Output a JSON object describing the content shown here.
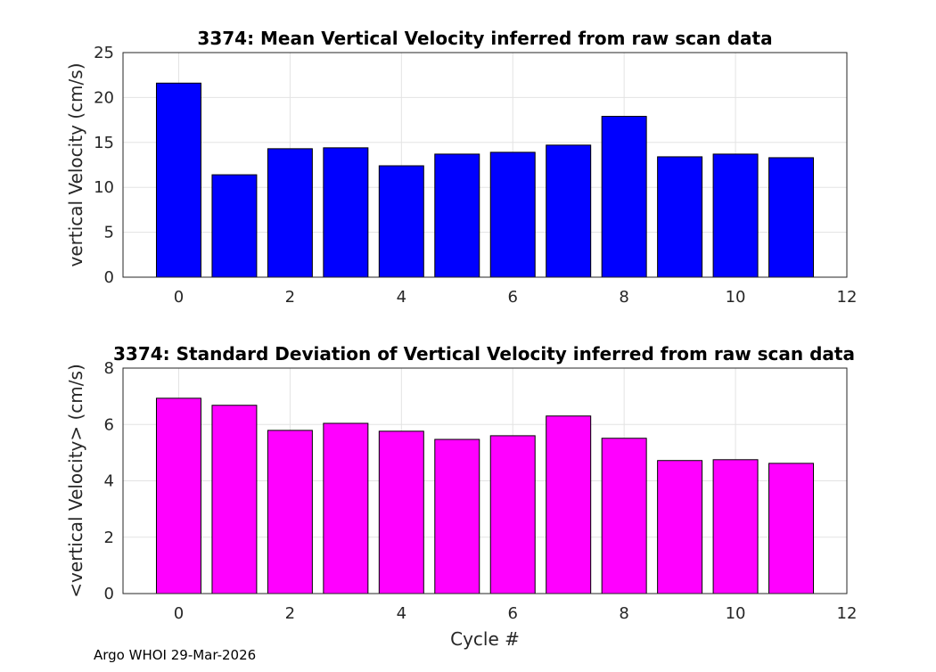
{
  "chart_data": [
    {
      "type": "bar",
      "title": "3374: Mean Vertical Velocity inferred from raw scan data",
      "xlabel": "",
      "ylabel": "vertical Velocity (cm/s)",
      "x": [
        0,
        1,
        2,
        3,
        4,
        5,
        6,
        7,
        8,
        9,
        10,
        11
      ],
      "values": [
        21.6,
        11.4,
        14.3,
        14.4,
        12.4,
        13.7,
        13.9,
        14.7,
        17.9,
        13.4,
        13.7,
        13.3
      ],
      "xlim": [
        -1,
        12
      ],
      "ylim": [
        0,
        25
      ],
      "xticks": [
        0,
        2,
        4,
        6,
        8,
        10,
        12
      ],
      "yticks": [
        0,
        5,
        10,
        15,
        20,
        25
      ],
      "color": "#0000ff",
      "grid": true
    },
    {
      "type": "bar",
      "title": "3374: Standard Deviation of Vertical Velocity inferred from raw scan data",
      "xlabel": "Cycle #",
      "ylabel": "<vertical Velocity> (cm/s)",
      "x": [
        0,
        1,
        2,
        3,
        4,
        5,
        6,
        7,
        8,
        9,
        10,
        11
      ],
      "values": [
        6.93,
        6.68,
        5.79,
        6.04,
        5.76,
        5.47,
        5.6,
        6.3,
        5.51,
        4.72,
        4.75,
        4.62
      ],
      "xlim": [
        -1,
        12
      ],
      "ylim": [
        0,
        8
      ],
      "xticks": [
        0,
        2,
        4,
        6,
        8,
        10,
        12
      ],
      "yticks": [
        0,
        2,
        4,
        6,
        8
      ],
      "color": "#ff00ff",
      "grid": true
    }
  ],
  "footer": "Argo WHOI 29-Mar-2026"
}
